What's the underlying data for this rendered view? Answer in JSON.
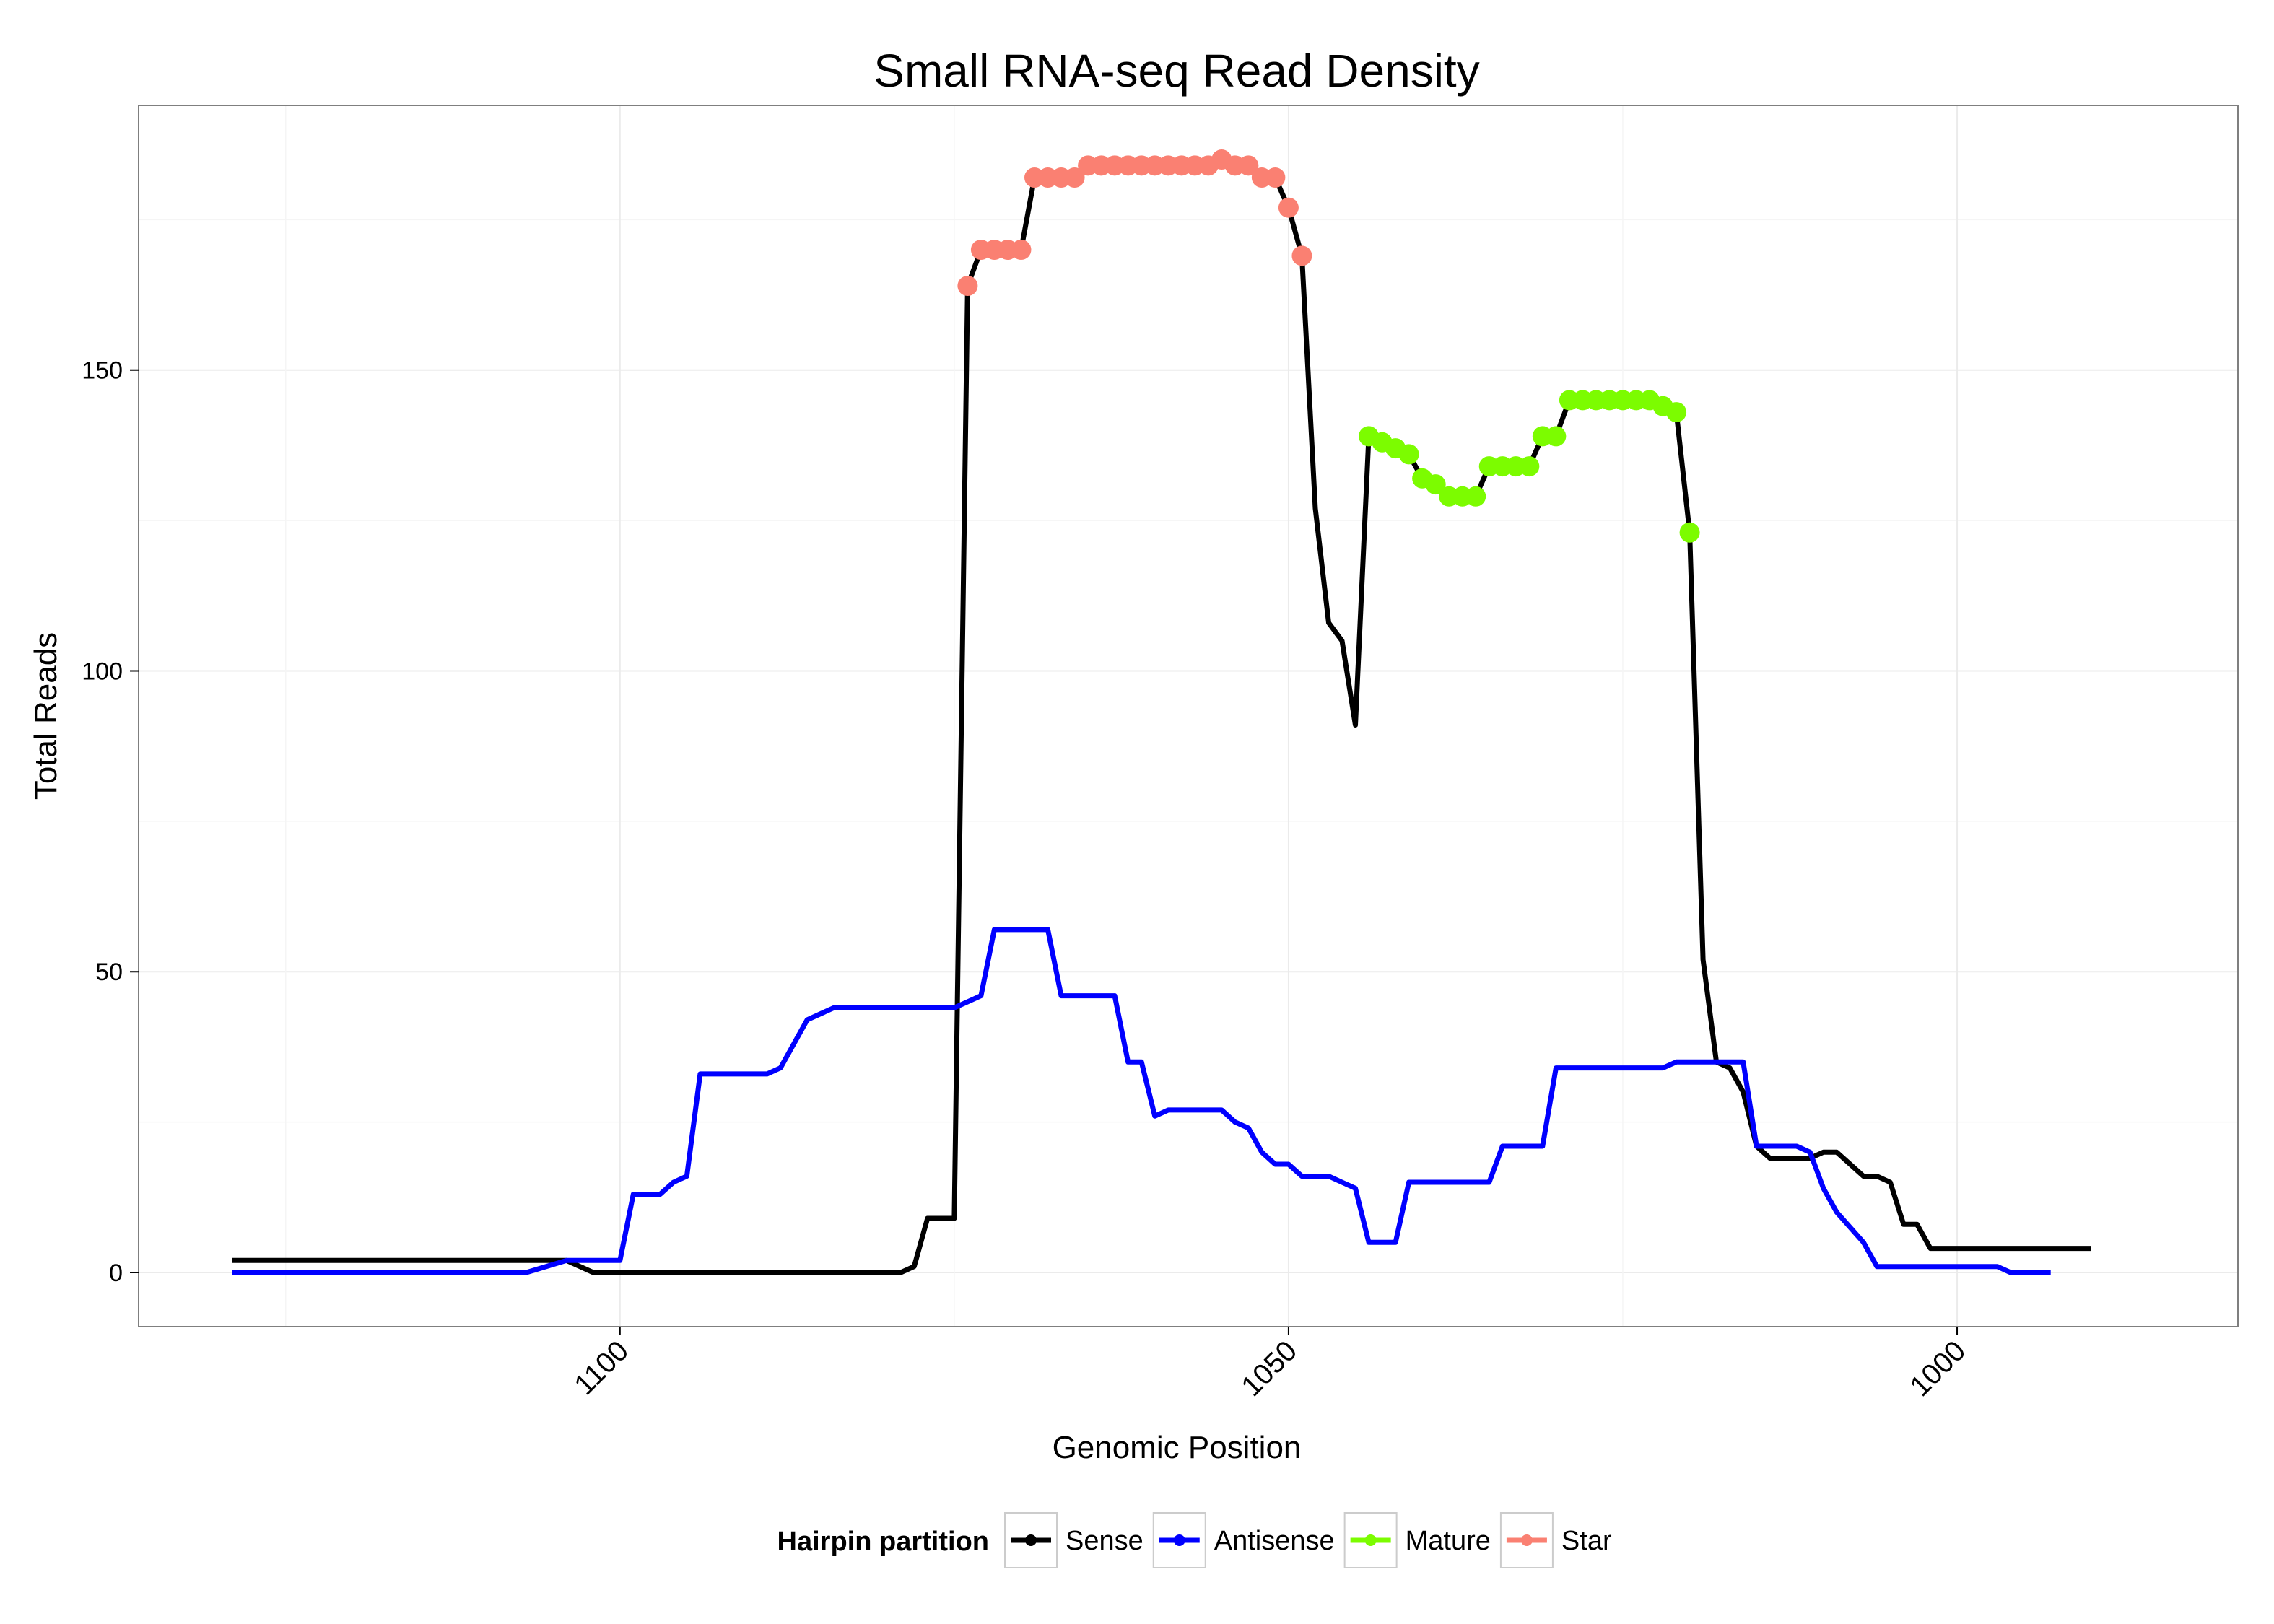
{
  "chart_data": {
    "type": "line",
    "title": "Small RNA-seq Read Density",
    "xlabel": "Genomic Position",
    "ylabel": "Total Reads",
    "x_reversed": true,
    "xlim": [
      1136,
      979
    ],
    "ylim": [
      -9,
      194
    ],
    "x_ticks": [
      1100,
      1050,
      1000
    ],
    "y_ticks": [
      0,
      50,
      100,
      150
    ],
    "grid": true,
    "legend": {
      "title": "Hairpin partition",
      "placement": "bottom",
      "entries": [
        {
          "name": "Sense",
          "color": "#000000"
        },
        {
          "name": "Antisense",
          "color": "#0000ff"
        },
        {
          "name": "Mature",
          "color": "#7cfc00"
        },
        {
          "name": "Star",
          "color": "#fa8072"
        }
      ]
    },
    "series": [
      {
        "name": "Sense",
        "color": "#000000",
        "points": [
          [
            1129,
            2
          ],
          [
            1125,
            2
          ],
          [
            1120,
            2
          ],
          [
            1115,
            2
          ],
          [
            1110,
            2
          ],
          [
            1106,
            2
          ],
          [
            1104,
            2
          ],
          [
            1102,
            0
          ],
          [
            1100,
            0
          ],
          [
            1095,
            0
          ],
          [
            1090,
            0
          ],
          [
            1085,
            0
          ],
          [
            1081,
            0
          ],
          [
            1080,
            0
          ],
          [
            1079,
            0
          ],
          [
            1078,
            1
          ],
          [
            1077,
            9
          ],
          [
            1076,
            9
          ],
          [
            1075,
            9
          ],
          [
            1074,
            164
          ],
          [
            1073,
            170
          ],
          [
            1072,
            170
          ],
          [
            1071,
            170
          ],
          [
            1070,
            170
          ],
          [
            1069,
            182
          ],
          [
            1068,
            182
          ],
          [
            1067,
            182
          ],
          [
            1066,
            182
          ],
          [
            1065,
            184
          ],
          [
            1064,
            184
          ],
          [
            1063,
            184
          ],
          [
            1062,
            184
          ],
          [
            1061,
            184
          ],
          [
            1060,
            184
          ],
          [
            1059,
            184
          ],
          [
            1058,
            184
          ],
          [
            1057,
            184
          ],
          [
            1056,
            184
          ],
          [
            1055,
            185
          ],
          [
            1054,
            184
          ],
          [
            1053,
            184
          ],
          [
            1052,
            182
          ],
          [
            1051,
            182
          ],
          [
            1050,
            177
          ],
          [
            1049,
            169
          ],
          [
            1048,
            127
          ],
          [
            1047,
            108
          ],
          [
            1046,
            105
          ],
          [
            1045,
            91
          ],
          [
            1044,
            139
          ],
          [
            1043,
            138
          ],
          [
            1042,
            137
          ],
          [
            1041,
            136
          ],
          [
            1040,
            132
          ],
          [
            1039,
            131
          ],
          [
            1038,
            129
          ],
          [
            1037,
            129
          ],
          [
            1036,
            129
          ],
          [
            1035,
            134
          ],
          [
            1034,
            134
          ],
          [
            1033,
            134
          ],
          [
            1032,
            134
          ],
          [
            1031,
            139
          ],
          [
            1030,
            139
          ],
          [
            1029,
            145
          ],
          [
            1028,
            145
          ],
          [
            1027,
            145
          ],
          [
            1026,
            145
          ],
          [
            1025,
            145
          ],
          [
            1024,
            145
          ],
          [
            1023,
            145
          ],
          [
            1022,
            144
          ],
          [
            1021,
            143
          ],
          [
            1020,
            123
          ],
          [
            1019,
            52
          ],
          [
            1018,
            35
          ],
          [
            1017,
            34
          ],
          [
            1016,
            30
          ],
          [
            1015,
            21
          ],
          [
            1014,
            19
          ],
          [
            1013,
            19
          ],
          [
            1012,
            19
          ],
          [
            1011,
            19
          ],
          [
            1010,
            20
          ],
          [
            1009,
            20
          ],
          [
            1008,
            18
          ],
          [
            1007,
            16
          ],
          [
            1006,
            16
          ],
          [
            1005,
            15
          ],
          [
            1004,
            8
          ],
          [
            1003,
            8
          ],
          [
            1002,
            4
          ],
          [
            1000,
            4
          ],
          [
            995,
            4
          ],
          [
            990,
            4
          ],
          [
            1001,
            4
          ],
          [
            998,
            4
          ],
          [
            999,
            4
          ]
        ]
      },
      {
        "name": "Antisense",
        "color": "#0000ff",
        "points": [
          [
            1129,
            0
          ],
          [
            1120,
            0
          ],
          [
            1110,
            0
          ],
          [
            1107,
            0
          ],
          [
            1104,
            2
          ],
          [
            1100,
            2
          ],
          [
            1099,
            13
          ],
          [
            1097,
            13
          ],
          [
            1096,
            15
          ],
          [
            1095,
            16
          ],
          [
            1094,
            33
          ],
          [
            1093,
            33
          ],
          [
            1090,
            33
          ],
          [
            1089,
            33
          ],
          [
            1088,
            34
          ],
          [
            1087,
            38
          ],
          [
            1086,
            42
          ],
          [
            1084,
            44
          ],
          [
            1082,
            44
          ],
          [
            1080,
            44
          ],
          [
            1078,
            44
          ],
          [
            1077,
            44
          ],
          [
            1076,
            44
          ],
          [
            1075,
            44
          ],
          [
            1074,
            45
          ],
          [
            1073,
            46
          ],
          [
            1072,
            57
          ],
          [
            1071,
            57
          ],
          [
            1070,
            57
          ],
          [
            1069,
            57
          ],
          [
            1068,
            57
          ],
          [
            1067,
            46
          ],
          [
            1066,
            46
          ],
          [
            1065,
            46
          ],
          [
            1064,
            46
          ],
          [
            1063,
            46
          ],
          [
            1062,
            35
          ],
          [
            1061,
            35
          ],
          [
            1060,
            26
          ],
          [
            1059,
            27
          ],
          [
            1058,
            27
          ],
          [
            1057,
            27
          ],
          [
            1056,
            27
          ],
          [
            1055,
            27
          ],
          [
            1054,
            25
          ],
          [
            1053,
            24
          ],
          [
            1052,
            20
          ],
          [
            1051,
            18
          ],
          [
            1050,
            18
          ],
          [
            1049,
            16
          ],
          [
            1048,
            16
          ],
          [
            1047,
            16
          ],
          [
            1046,
            15
          ],
          [
            1045,
            14
          ],
          [
            1044,
            5
          ],
          [
            1043,
            5
          ],
          [
            1042,
            5
          ],
          [
            1041,
            15
          ],
          [
            1040,
            15
          ],
          [
            1038,
            15
          ],
          [
            1036,
            15
          ],
          [
            1035,
            15
          ],
          [
            1034,
            21
          ],
          [
            1032,
            21
          ],
          [
            1031,
            21
          ],
          [
            1030,
            34
          ],
          [
            1028,
            34
          ],
          [
            1026,
            34
          ],
          [
            1024,
            34
          ],
          [
            1022,
            34
          ],
          [
            1021,
            35
          ],
          [
            1020,
            35
          ],
          [
            1018,
            35
          ],
          [
            1016,
            35
          ],
          [
            1015,
            21
          ],
          [
            1012,
            21
          ],
          [
            1011,
            20
          ],
          [
            1010,
            14
          ],
          [
            1009,
            10
          ],
          [
            1007,
            5
          ],
          [
            1006,
            1
          ],
          [
            1004,
            1
          ],
          [
            1000,
            1
          ],
          [
            997,
            1
          ],
          [
            996,
            0
          ],
          [
            994,
            0
          ],
          [
            993,
            0
          ]
        ]
      }
    ],
    "marked_points": [
      {
        "series": "Star",
        "color": "#fa8072",
        "points": [
          [
            1074,
            164
          ],
          [
            1073,
            170
          ],
          [
            1072,
            170
          ],
          [
            1071,
            170
          ],
          [
            1070,
            170
          ],
          [
            1069,
            182
          ],
          [
            1068,
            182
          ],
          [
            1067,
            182
          ],
          [
            1066,
            182
          ],
          [
            1065,
            184
          ],
          [
            1064,
            184
          ],
          [
            1063,
            184
          ],
          [
            1062,
            184
          ],
          [
            1061,
            184
          ],
          [
            1060,
            184
          ],
          [
            1059,
            184
          ],
          [
            1058,
            184
          ],
          [
            1057,
            184
          ],
          [
            1056,
            184
          ],
          [
            1055,
            185
          ],
          [
            1054,
            184
          ],
          [
            1053,
            184
          ],
          [
            1052,
            182
          ],
          [
            1051,
            182
          ],
          [
            1050,
            177
          ],
          [
            1049,
            169
          ]
        ]
      },
      {
        "series": "Mature",
        "color": "#7cfc00",
        "points": [
          [
            1044,
            139
          ],
          [
            1043,
            138
          ],
          [
            1042,
            137
          ],
          [
            1041,
            136
          ],
          [
            1040,
            132
          ],
          [
            1039,
            131
          ],
          [
            1038,
            129
          ],
          [
            1037,
            129
          ],
          [
            1036,
            129
          ],
          [
            1035,
            134
          ],
          [
            1034,
            134
          ],
          [
            1033,
            134
          ],
          [
            1032,
            134
          ],
          [
            1031,
            139
          ],
          [
            1030,
            139
          ],
          [
            1029,
            145
          ],
          [
            1028,
            145
          ],
          [
            1027,
            145
          ],
          [
            1026,
            145
          ],
          [
            1025,
            145
          ],
          [
            1024,
            145
          ],
          [
            1023,
            145
          ],
          [
            1022,
            144
          ],
          [
            1021,
            143
          ],
          [
            1020,
            123
          ]
        ]
      }
    ]
  }
}
